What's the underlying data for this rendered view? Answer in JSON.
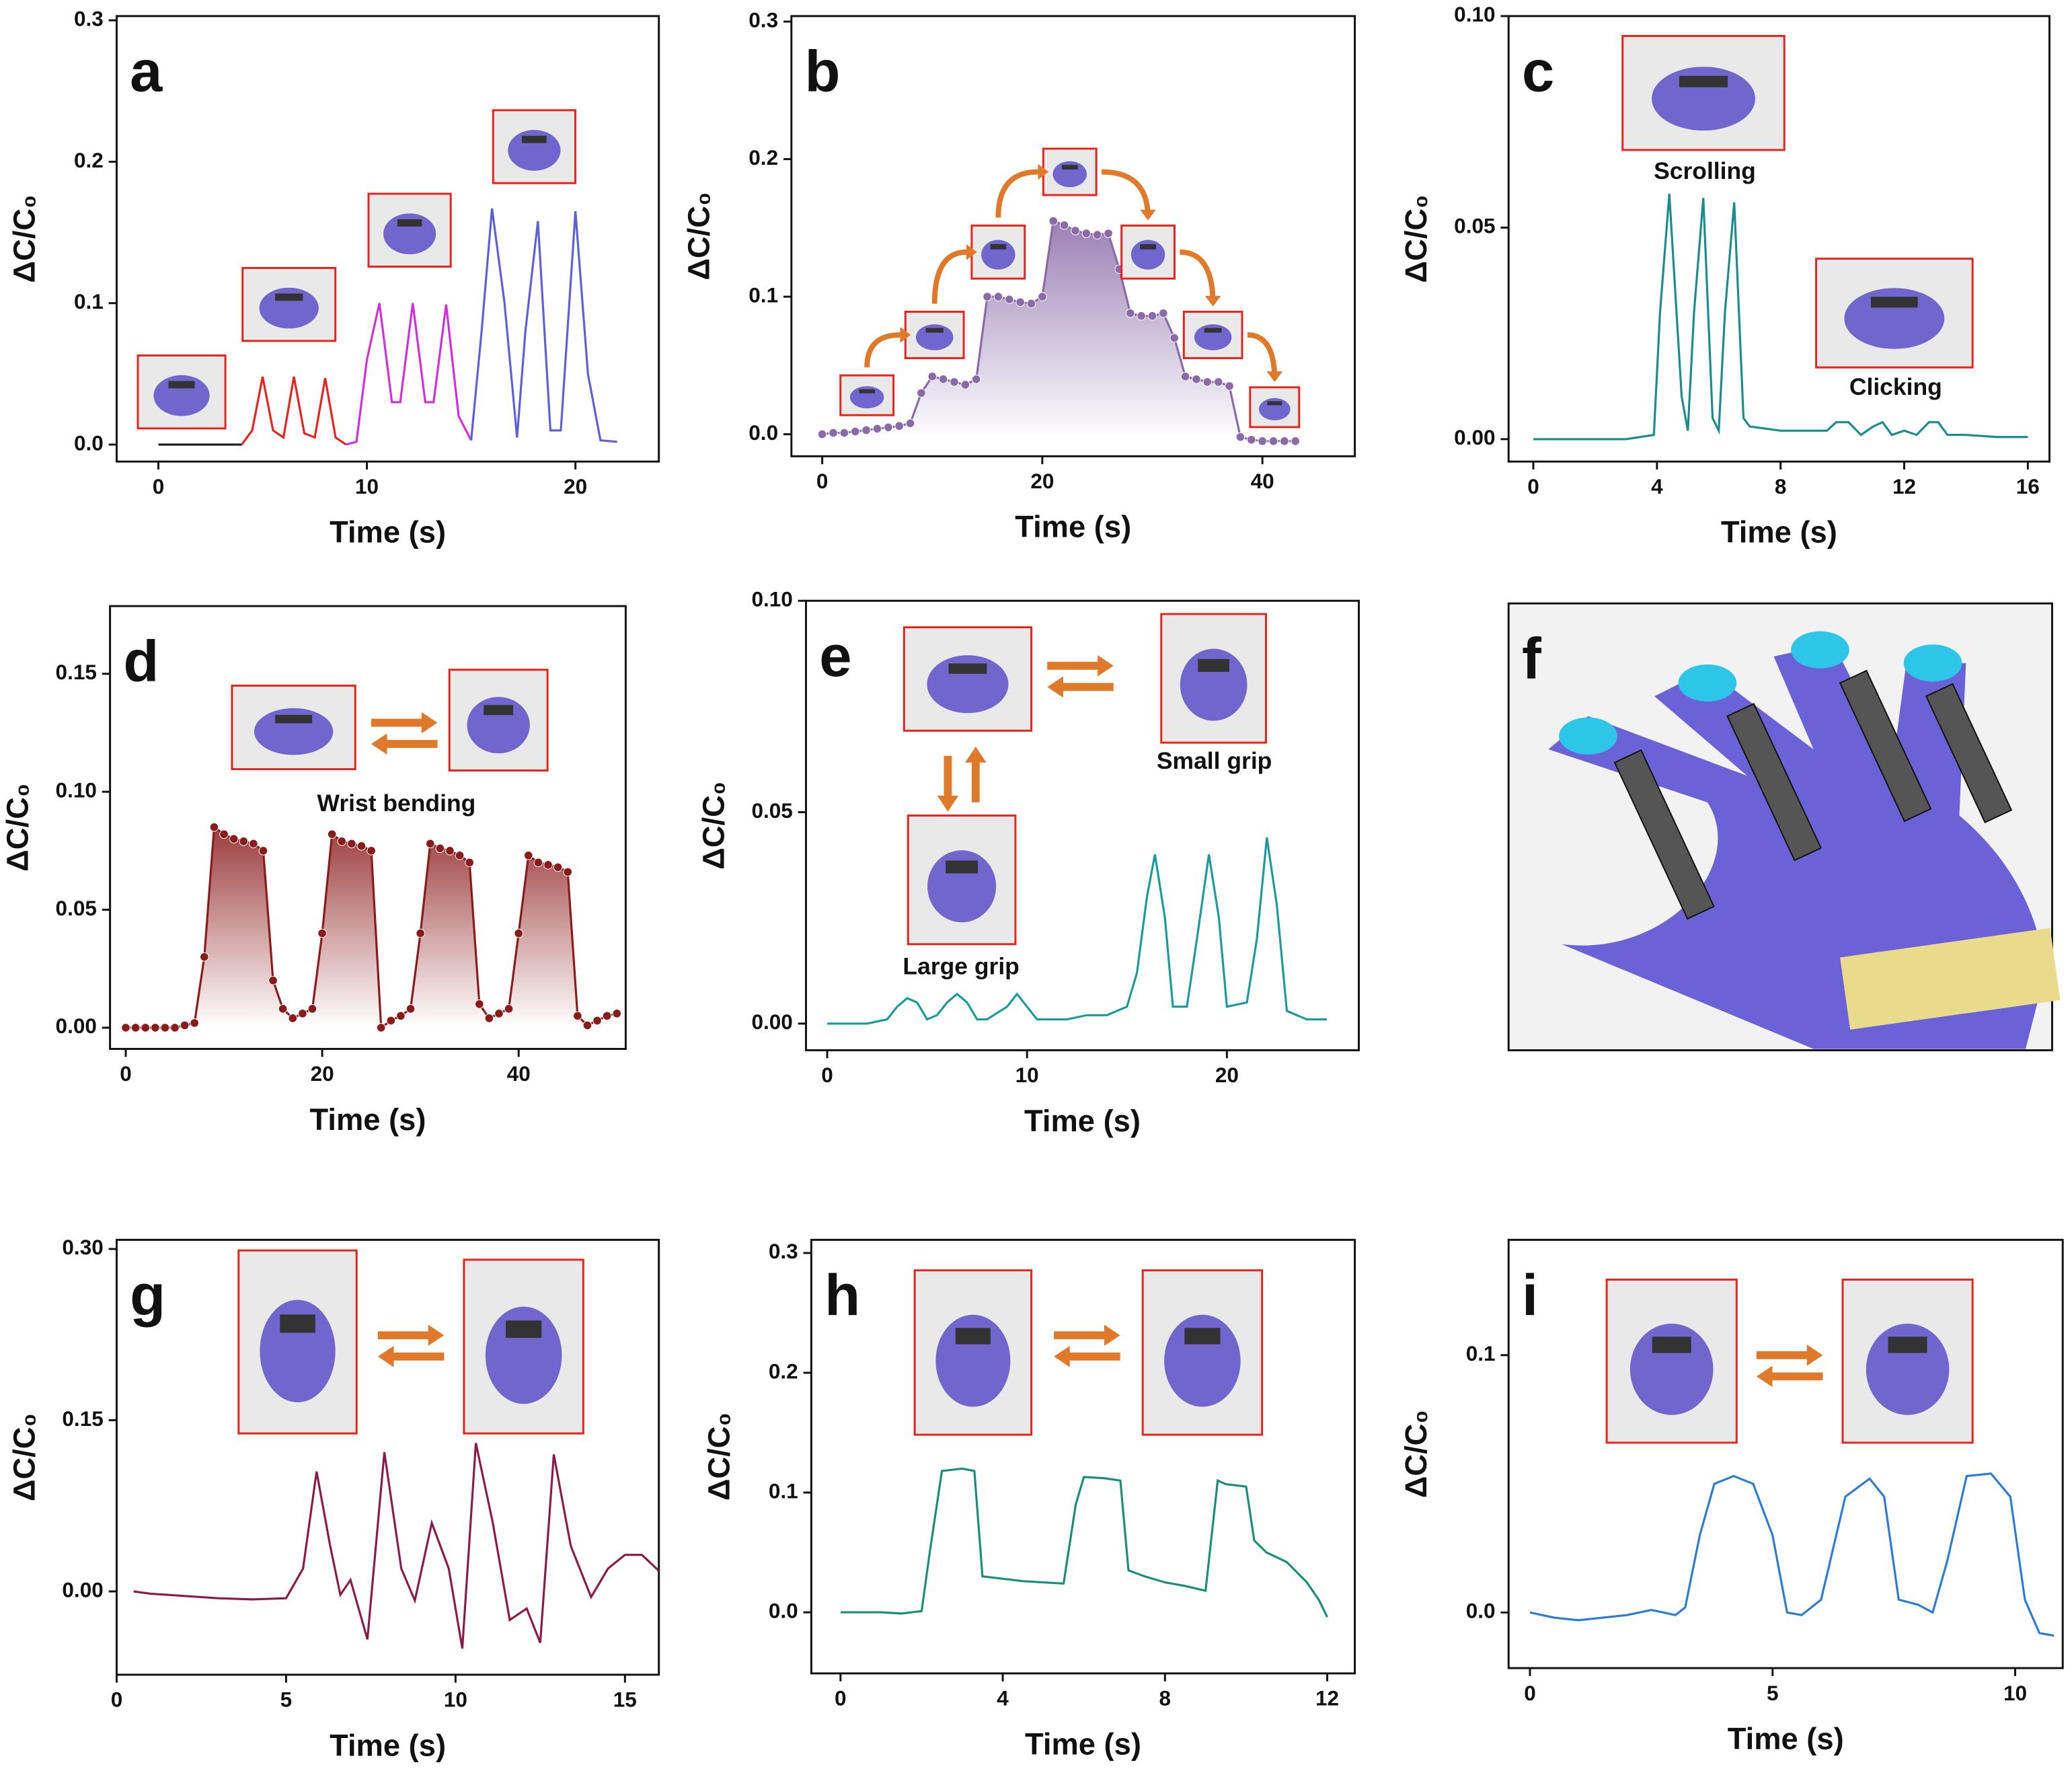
{
  "chart_data": [
    {
      "type": "line",
      "label": "a",
      "xlabel": "Time (s)",
      "ylabel": "ΔC/C₀",
      "xlim": [
        -2,
        24
      ],
      "ylim": [
        -0.012,
        0.303
      ],
      "xticks": [
        0,
        10,
        20
      ],
      "yticks": [
        {
          "value": 0,
          "label": "0.0"
        },
        {
          "value": 0.1,
          "label": "0.1"
        },
        {
          "value": 0.2,
          "label": "0.2"
        },
        {
          "value": 0.3,
          "label": "0.3"
        }
      ],
      "series": [
        {
          "color": "#222222",
          "x": [
            0,
            1,
            2,
            3,
            4
          ],
          "values": [
            0,
            0,
            0,
            0,
            0
          ]
        },
        {
          "color": "#e8231c",
          "x": [
            4,
            4.5,
            5,
            5.5,
            6,
            6.5,
            7,
            7.5,
            8,
            8.5,
            9
          ],
          "values": [
            0,
            0.01,
            0.048,
            0.01,
            0.005,
            0.048,
            0.008,
            0.005,
            0.047,
            0.005,
            0
          ]
        },
        {
          "color": "#d02ed6",
          "x": [
            9,
            9.5,
            10,
            10.6,
            11.2,
            11.6,
            12.2,
            12.8,
            13.2,
            13.8,
            14.4,
            15
          ],
          "values": [
            0,
            0.002,
            0.06,
            0.1,
            0.03,
            0.03,
            0.1,
            0.03,
            0.03,
            0.099,
            0.02,
            0.003
          ]
        },
        {
          "color": "#5b5fd8",
          "x": [
            15,
            15.5,
            16,
            16.6,
            17.2,
            17.6,
            18.2,
            18.8,
            19.3,
            20,
            20.6,
            21.2,
            22
          ],
          "values": [
            0.003,
            0.08,
            0.167,
            0.1,
            0.005,
            0.08,
            0.158,
            0.01,
            0.01,
            0.165,
            0.05,
            0.003,
            0.002
          ]
        }
      ]
    },
    {
      "type": "line",
      "label": "b",
      "xlabel": "Time (s)",
      "ylabel": "ΔC/C₀",
      "markers": true,
      "area_fill": true,
      "xlim": [
        -2.8,
        48.4
      ],
      "ylim": [
        -0.016,
        0.304
      ],
      "xticks": [
        0,
        20,
        40
      ],
      "yticks": [
        {
          "value": 0,
          "label": "0.0"
        },
        {
          "value": 0.1,
          "label": "0.1"
        },
        {
          "value": 0.2,
          "label": "0.2"
        },
        {
          "value": 0.3,
          "label": "0.3"
        }
      ],
      "series": [
        {
          "color": "#8a6aa8",
          "x": [
            0,
            1,
            2,
            3,
            4,
            5,
            6,
            7,
            8,
            9,
            10,
            11,
            12,
            13,
            14,
            15,
            16,
            17,
            18,
            19,
            20,
            21,
            22,
            23,
            24,
            25,
            26,
            27,
            28,
            29,
            30,
            31,
            32,
            33,
            34,
            35,
            36,
            37,
            38,
            39,
            40,
            41,
            42,
            43
          ],
          "values": [
            0,
            0.001,
            0.001,
            0.002,
            0.003,
            0.004,
            0.005,
            0.006,
            0.008,
            0.03,
            0.042,
            0.04,
            0.038,
            0.036,
            0.04,
            0.1,
            0.1,
            0.098,
            0.096,
            0.095,
            0.1,
            0.155,
            0.152,
            0.148,
            0.146,
            0.145,
            0.146,
            0.12,
            0.088,
            0.086,
            0.086,
            0.088,
            0.07,
            0.042,
            0.04,
            0.038,
            0.038,
            0.035,
            -0.002,
            -0.004,
            -0.005,
            -0.005,
            -0.005,
            -0.005
          ]
        }
      ]
    },
    {
      "type": "line",
      "label": "c",
      "xlabel": "Time (s)",
      "ylabel": "ΔC/C₀",
      "xlim": [
        -0.8,
        16.7
      ],
      "ylim": [
        -0.0053,
        0.1
      ],
      "xticks": [
        0,
        4,
        8,
        12,
        16
      ],
      "yticks": [
        {
          "value": 0,
          "label": "0.00"
        },
        {
          "value": 0.05,
          "label": "0.05"
        },
        {
          "value": 0.1,
          "label": "0.10"
        }
      ],
      "annotations": [
        "Scrolling",
        "Clicking"
      ],
      "series": [
        {
          "color": "#1a8c8c",
          "x": [
            0,
            1,
            2,
            3,
            3.9,
            4.1,
            4.4,
            4.8,
            5,
            5.2,
            5.5,
            5.8,
            6,
            6.2,
            6.5,
            6.8,
            7,
            8,
            9,
            9.5,
            9.8,
            10.2,
            10.6,
            11,
            11.3,
            11.6,
            12,
            12.4,
            12.8,
            13.1,
            13.4,
            14,
            15,
            16
          ],
          "values": [
            0,
            0,
            0,
            0,
            0.001,
            0.03,
            0.058,
            0.01,
            0.002,
            0.03,
            0.057,
            0.005,
            0.002,
            0.03,
            0.056,
            0.005,
            0.003,
            0.002,
            0.002,
            0.002,
            0.004,
            0.004,
            0.001,
            0.003,
            0.004,
            0.001,
            0.002,
            0.001,
            0.004,
            0.004,
            0.001,
            0.001,
            0.0005,
            0.0005
          ]
        }
      ]
    },
    {
      "type": "line",
      "label": "d",
      "xlabel": "Time (s)",
      "ylabel": "ΔC/C₀",
      "markers": true,
      "area_fill": true,
      "xlim": [
        -1.6,
        50.9
      ],
      "ylim": [
        -0.009,
        0.1787
      ],
      "xticks": [
        0,
        20,
        40
      ],
      "yticks": [
        {
          "value": 0,
          "label": "0.00"
        },
        {
          "value": 0.05,
          "label": "0.05"
        },
        {
          "value": 0.1,
          "label": "0.10"
        },
        {
          "value": 0.15,
          "label": "0.15"
        }
      ],
      "annotations": [
        "Wrist bending"
      ],
      "series": [
        {
          "color": "#8b1a1a",
          "x": [
            0,
            1,
            2,
            3,
            4,
            5,
            6,
            7,
            8,
            9,
            10,
            11,
            12,
            13,
            14,
            15,
            16,
            17,
            18,
            19,
            20,
            21,
            22,
            23,
            24,
            25,
            26,
            27,
            28,
            29,
            30,
            31,
            32,
            33,
            34,
            35,
            36,
            37,
            38,
            39,
            40,
            41,
            42,
            43,
            44,
            45,
            46,
            47,
            48,
            49,
            50
          ],
          "values": [
            0,
            0,
            0,
            0,
            0,
            0,
            0.001,
            0.002,
            0.03,
            0.085,
            0.082,
            0.08,
            0.079,
            0.078,
            0.075,
            0.02,
            0.008,
            0.004,
            0.006,
            0.008,
            0.04,
            0.082,
            0.079,
            0.078,
            0.077,
            0.075,
            0,
            0.003,
            0.005,
            0.008,
            0.04,
            0.078,
            0.076,
            0.075,
            0.073,
            0.07,
            0.01,
            0.004,
            0.006,
            0.008,
            0.04,
            0.073,
            0.07,
            0.069,
            0.068,
            0.066,
            0.005,
            0.001,
            0.003,
            0.005,
            0.006
          ]
        }
      ]
    },
    {
      "type": "line",
      "label": "e",
      "xlabel": "Time (s)",
      "ylabel": "ΔC/C₀",
      "xlim": [
        -1.06,
        26.6
      ],
      "ylim": [
        -0.0063,
        0.1
      ],
      "xticks": [
        0,
        10,
        20
      ],
      "yticks": [
        {
          "value": 0,
          "label": "0.00"
        },
        {
          "value": 0.05,
          "label": "0.05"
        },
        {
          "value": 0.1,
          "label": "0.10"
        }
      ],
      "annotations": [
        "Large grip",
        "Small grip"
      ],
      "series": [
        {
          "color": "#1a9a9a",
          "x": [
            0,
            1,
            2,
            3,
            3.5,
            4,
            4.5,
            5,
            5.5,
            6,
            6.5,
            7,
            7.5,
            8,
            9,
            9.5,
            10,
            10.5,
            11,
            12,
            13,
            14,
            15,
            15.5,
            16,
            16.4,
            16.9,
            17.3,
            18,
            18.5,
            19.1,
            19.6,
            20,
            21,
            21.5,
            22,
            22.5,
            23,
            24,
            25
          ],
          "values": [
            0,
            0,
            0,
            0.001,
            0.004,
            0.006,
            0.005,
            0.001,
            0.002,
            0.005,
            0.007,
            0.005,
            0.001,
            0.001,
            0.004,
            0.007,
            0.004,
            0.001,
            0.001,
            0.001,
            0.002,
            0.002,
            0.004,
            0.012,
            0.03,
            0.04,
            0.025,
            0.004,
            0.004,
            0.02,
            0.04,
            0.025,
            0.004,
            0.005,
            0.02,
            0.044,
            0.028,
            0.003,
            0.001,
            0.001
          ]
        }
      ]
    },
    {
      "type": "image",
      "label": "f"
    },
    {
      "type": "line",
      "label": "g",
      "xlabel": "Time (s)",
      "ylabel": "ΔC/C₀",
      "xlim": [
        0,
        16
      ],
      "ylim": [
        -0.073,
        0.308
      ],
      "xticks": [
        0,
        5,
        10,
        15
      ],
      "yticks": [
        {
          "value": 0,
          "label": "0.00"
        },
        {
          "value": 0.15,
          "label": "0.15"
        },
        {
          "value": 0.3,
          "label": "0.30"
        }
      ],
      "series": [
        {
          "color": "#8b1a4a",
          "x": [
            0.5,
            1,
            2,
            3,
            4,
            5,
            5.5,
            5.9,
            6.3,
            6.6,
            6.9,
            7.4,
            7.9,
            8.4,
            8.8,
            9.3,
            9.8,
            10.2,
            10.6,
            11.1,
            11.6,
            12.1,
            12.5,
            12.9,
            13.4,
            14,
            14.5,
            15,
            15.5,
            16
          ],
          "values": [
            0,
            -0.002,
            -0.004,
            -0.006,
            -0.007,
            -0.006,
            0.02,
            0.105,
            0.04,
            -0.003,
            0.01,
            -0.042,
            0.122,
            0.02,
            -0.008,
            0.06,
            0.02,
            -0.05,
            0.13,
            0.06,
            -0.025,
            -0.015,
            -0.045,
            0.12,
            0.04,
            -0.005,
            0.02,
            0.032,
            0.032,
            0.018
          ]
        }
      ]
    },
    {
      "type": "line",
      "label": "h",
      "xlabel": "Time (s)",
      "ylabel": "ΔC/C₀",
      "xlim": [
        -0.72,
        12.68
      ],
      "ylim": [
        -0.051,
        0.311
      ],
      "xticks": [
        0,
        4,
        8,
        12
      ],
      "yticks": [
        {
          "value": 0,
          "label": "0.0"
        },
        {
          "value": 0.1,
          "label": "0.1"
        },
        {
          "value": 0.2,
          "label": "0.2"
        },
        {
          "value": 0.3,
          "label": "0.3"
        }
      ],
      "series": [
        {
          "color": "#1a8c7c",
          "x": [
            0,
            0.5,
            1,
            1.5,
            2,
            2.2,
            2.5,
            3,
            3.3,
            3.5,
            4,
            4.5,
            5,
            5.5,
            5.8,
            6,
            6.5,
            6.9,
            7.1,
            7.5,
            8,
            8.5,
            9,
            9.3,
            9.5,
            10,
            10.2,
            10.5,
            11,
            11.5,
            11.8,
            12
          ],
          "values": [
            0,
            0,
            0,
            -0.001,
            0.001,
            0.05,
            0.118,
            0.12,
            0.118,
            0.03,
            0.028,
            0.026,
            0.025,
            0.024,
            0.09,
            0.113,
            0.112,
            0.11,
            0.035,
            0.03,
            0.025,
            0.022,
            0.018,
            0.11,
            0.107,
            0.105,
            0.06,
            0.05,
            0.042,
            0.025,
            0.01,
            -0.004
          ]
        }
      ]
    },
    {
      "type": "line",
      "label": "i",
      "xlabel": "Time (s)",
      "ylabel": "ΔC/C₀",
      "xlim": [
        -0.44,
        10.98
      ],
      "ylim": [
        -0.0216,
        0.1448
      ],
      "xticks": [
        0,
        5,
        10
      ],
      "yticks": [
        {
          "value": 0,
          "label": "0.0"
        },
        {
          "value": 0.1,
          "label": "0.1"
        }
      ],
      "series": [
        {
          "color": "#2b7bd4",
          "x": [
            0,
            0.5,
            1,
            1.5,
            2,
            2.5,
            3,
            3.2,
            3.5,
            3.8,
            4.2,
            4.6,
            5,
            5.3,
            5.6,
            6,
            6.5,
            7,
            7.3,
            7.6,
            8,
            8.3,
            8.6,
            9,
            9.5,
            9.9,
            10.2,
            10.5,
            10.8
          ],
          "values": [
            0,
            -0.002,
            -0.003,
            -0.002,
            -0.001,
            0.001,
            -0.001,
            0.002,
            0.03,
            0.05,
            0.053,
            0.05,
            0.03,
            0,
            -0.001,
            0.005,
            0.045,
            0.052,
            0.045,
            0.005,
            0.003,
            0,
            0.02,
            0.053,
            0.054,
            0.045,
            0.005,
            -0.008,
            -0.009
          ]
        }
      ]
    }
  ]
}
